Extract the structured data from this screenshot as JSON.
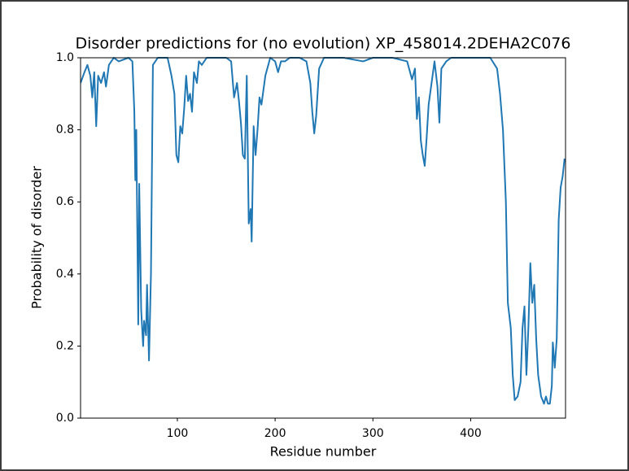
{
  "chart_data": {
    "type": "line",
    "title": "Disorder predictions for (no evolution) XP_458014.2DEHA2C076",
    "x_label": "Residue number",
    "y_label": "Probability of disorder",
    "xlim": [
      1,
      497
    ],
    "ylim": [
      0,
      1
    ],
    "xticks": [
      100,
      200,
      300,
      400
    ],
    "yticks": [
      {
        "value": 0,
        "label": "0.0"
      },
      0.2,
      0.4,
      0.6,
      0.8,
      {
        "value": 1,
        "label": "1.0"
      }
    ],
    "grid": false,
    "x": [
      1,
      5,
      8,
      11,
      13,
      15,
      17,
      19,
      22,
      25,
      27,
      30,
      35,
      40,
      50,
      54,
      56,
      57,
      58,
      60,
      61,
      63,
      65,
      66,
      68,
      69,
      71,
      73,
      75,
      80,
      90,
      94,
      97,
      99,
      101,
      103,
      105,
      107,
      109,
      111,
      113,
      115,
      117,
      120,
      122,
      125,
      130,
      140,
      150,
      155,
      158,
      161,
      163,
      165,
      167,
      169,
      171,
      173,
      175,
      176,
      178,
      180,
      182,
      184,
      186,
      190,
      195,
      200,
      203,
      206,
      210,
      215,
      225,
      232,
      236,
      238,
      240,
      242,
      245,
      250,
      270,
      290,
      300,
      320,
      335,
      340,
      343,
      345,
      347,
      349,
      351,
      353,
      355,
      357,
      360,
      363,
      366,
      368,
      370,
      375,
      380,
      400,
      420,
      427,
      430,
      433,
      436,
      438,
      441,
      443,
      445,
      448,
      451,
      453,
      455,
      457,
      459,
      461,
      463,
      465,
      467,
      469,
      472,
      475,
      477,
      479,
      481,
      483,
      484,
      486,
      488,
      490,
      492,
      494,
      496
    ],
    "series": [
      {
        "color": "#1f77b4",
        "values": [
          0.93,
          0.96,
          0.98,
          0.95,
          0.89,
          0.96,
          0.81,
          0.95,
          0.93,
          0.96,
          0.92,
          0.98,
          1.0,
          0.99,
          1.0,
          0.99,
          0.85,
          0.66,
          0.8,
          0.26,
          0.65,
          0.3,
          0.2,
          0.27,
          0.23,
          0.37,
          0.16,
          0.4,
          0.98,
          1.0,
          1.0,
          0.95,
          0.9,
          0.73,
          0.71,
          0.81,
          0.79,
          0.86,
          0.95,
          0.88,
          0.9,
          0.85,
          0.96,
          0.93,
          0.99,
          0.98,
          1.0,
          1.0,
          1.0,
          0.99,
          0.89,
          0.93,
          0.88,
          0.82,
          0.73,
          0.72,
          0.95,
          0.54,
          0.58,
          0.49,
          0.81,
          0.73,
          0.8,
          0.89,
          0.87,
          0.95,
          1.0,
          0.99,
          0.96,
          0.99,
          0.99,
          1.0,
          1.0,
          0.99,
          0.93,
          0.85,
          0.79,
          0.84,
          0.97,
          1.0,
          1.0,
          0.99,
          1.0,
          1.0,
          0.99,
          0.94,
          0.97,
          0.83,
          0.89,
          0.77,
          0.73,
          0.7,
          0.78,
          0.87,
          0.93,
          0.99,
          0.92,
          0.82,
          0.97,
          0.99,
          1.0,
          1.0,
          1.0,
          0.97,
          0.9,
          0.8,
          0.6,
          0.32,
          0.25,
          0.12,
          0.05,
          0.06,
          0.1,
          0.25,
          0.31,
          0.12,
          0.25,
          0.43,
          0.32,
          0.37,
          0.22,
          0.12,
          0.06,
          0.04,
          0.06,
          0.04,
          0.04,
          0.09,
          0.21,
          0.14,
          0.22,
          0.55,
          0.64,
          0.67,
          0.72
        ]
      }
    ]
  }
}
